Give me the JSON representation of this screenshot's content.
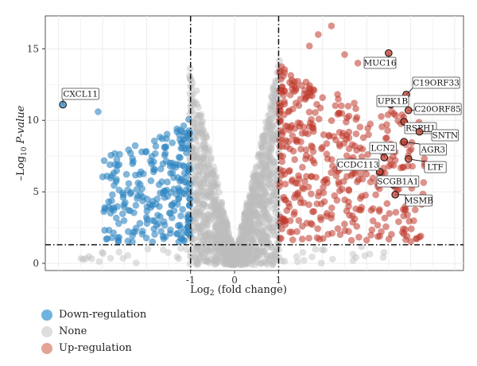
{
  "chart_data": {
    "type": "scatter",
    "title": "",
    "xlabel": "Log2 (fold change)",
    "ylabel": "-Log10 P-value",
    "xlim": [
      -4.3,
      5.2
    ],
    "ylim": [
      -0.5,
      17.3
    ],
    "x_ticks": [
      -1,
      0,
      1
    ],
    "x_tick_labels": [
      "-1",
      "0",
      "1"
    ],
    "y_ticks": [
      0,
      5,
      10,
      15
    ],
    "y_tick_labels": [
      "0",
      "5",
      "10",
      "15"
    ],
    "grid": true,
    "legend_position": "bottom-left",
    "thresholds": {
      "log2fc_low": -1,
      "log2fc_high": 1,
      "neg_log10_p": 1.3
    },
    "colors": {
      "down": "#2E86C1",
      "none": "#BDBDBD",
      "up": "#C0392B"
    },
    "series": [
      {
        "name": "Down-regulation",
        "color": "#4a9fd6"
      },
      {
        "name": "None",
        "color": "#d3d3d3"
      },
      {
        "name": "Up-regulation",
        "color": "#dc8a7c"
      }
    ],
    "labeled_genes": [
      {
        "gene": "CXCL11",
        "x": -3.9,
        "y": 11.1
      },
      {
        "gene": "MUC16",
        "x": 3.5,
        "y": 14.7
      },
      {
        "gene": "C19ORF33",
        "x": 3.9,
        "y": 11.8
      },
      {
        "gene": "UPK1B",
        "x": 3.55,
        "y": 11.1
      },
      {
        "gene": "C20ORF85",
        "x": 3.95,
        "y": 10.7
      },
      {
        "gene": "RSPH1",
        "x": 3.85,
        "y": 9.9
      },
      {
        "gene": "SNTN",
        "x": 4.2,
        "y": 9.2
      },
      {
        "gene": "LCN2",
        "x": 3.4,
        "y": 7.4
      },
      {
        "gene": "AGR3",
        "x": 3.85,
        "y": 8.5
      },
      {
        "gene": "CCDC113",
        "x": 3.3,
        "y": 6.4
      },
      {
        "gene": "LTF",
        "x": 3.95,
        "y": 7.3
      },
      {
        "gene": "SCGB1A1",
        "x": 3.6,
        "y": 5.5
      },
      {
        "gene": "MSMB",
        "x": 3.65,
        "y": 4.8
      }
    ]
  }
}
